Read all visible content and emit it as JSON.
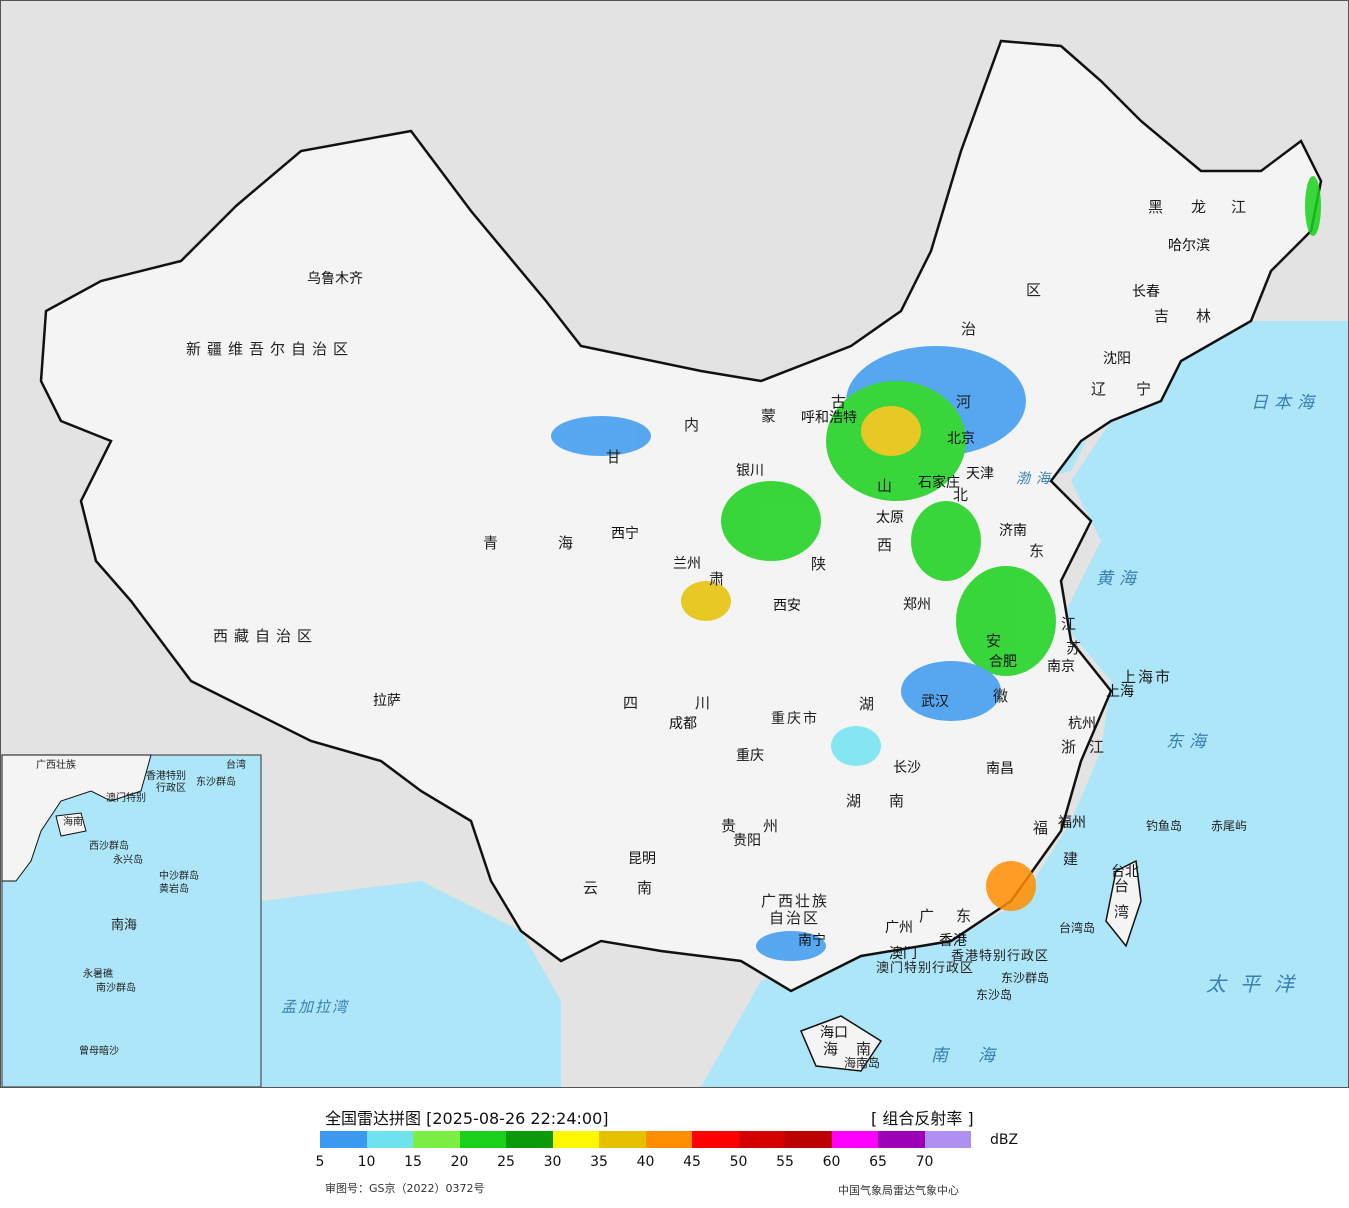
{
  "map": {
    "provinces": [
      "新疆维吾尔自治区",
      "西藏自治区",
      "青",
      "海",
      "甘",
      "肃",
      "内",
      "蒙",
      "古",
      "治",
      "区",
      "黑",
      "龙",
      "江",
      "吉",
      "林",
      "辽",
      "宁",
      "河",
      "北",
      "山",
      "西",
      "东",
      "陕",
      "四",
      "川",
      "重庆市",
      "湖",
      "湖",
      "南",
      "贵",
      "州",
      "云",
      "南",
      "广西壮族",
      "自治区",
      "广",
      "东",
      "福",
      "建",
      "浙",
      "江",
      "江",
      "苏",
      "安",
      "徽",
      "台",
      "湾",
      "海",
      "南",
      "上海市",
      "香港特别行政区",
      "澳门特别行政区"
    ],
    "cities": [
      "乌鲁木齐",
      "拉萨",
      "西宁",
      "兰州",
      "银川",
      "呼和浩特",
      "太原",
      "石家庄",
      "北京",
      "天津",
      "济南",
      "郑州",
      "西安",
      "成都",
      "重庆",
      "贵阳",
      "昆明",
      "南宁",
      "广州",
      "香港",
      "澳门",
      "海口",
      "长沙",
      "武汉",
      "南昌",
      "合肥",
      "南京",
      "上海",
      "杭州",
      "福州",
      "台北",
      "沈阳",
      "长春",
      "哈尔滨"
    ],
    "seas": [
      "日本海",
      "渤海",
      "黄海",
      "东海",
      "太平洋",
      "南海",
      "孟加拉湾"
    ],
    "islands": [
      "钓鱼岛",
      "赤尾屿",
      "台湾岛",
      "东沙群岛",
      "东沙岛",
      "海南岛"
    ],
    "inset": {
      "labels": [
        "广西壮族",
        "台湾",
        "澳门特别",
        "香港特别",
        "行政区",
        "东沙群岛",
        "海南",
        "西沙群岛",
        "永兴岛",
        "中沙群岛",
        "黄岩岛",
        "南海",
        "南沙群岛",
        "永暑礁",
        "曾母暗沙"
      ]
    }
  },
  "legend": {
    "title": "全国雷达拼图 [2025-08-26 22:24:00]",
    "product": "[ 组合反射率 ]",
    "unit": "dBZ",
    "colors": [
      "#3b9aef",
      "#6ee3ee",
      "#7cef45",
      "#19d11b",
      "#0a9a0a",
      "#fff700",
      "#e6c100",
      "#ff8d00",
      "#ff0000",
      "#d40000",
      "#bb0000",
      "#ff00ff",
      "#9b00b4",
      "#ad90ef"
    ],
    "ticks": [
      "5",
      "10",
      "15",
      "20",
      "25",
      "30",
      "35",
      "40",
      "45",
      "50",
      "55",
      "60",
      "65",
      "70"
    ],
    "review_no": "审图号：GS京（2022）0372号",
    "source": "中国气象局雷达气象中心"
  }
}
